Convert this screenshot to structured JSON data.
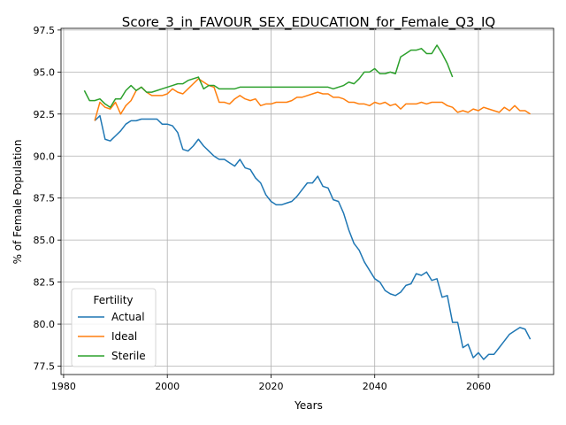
{
  "chart_data": {
    "type": "line",
    "title": "Score_3_in_FAVOUR_SEX_EDUCATION_for_Female_Q3_IQ",
    "xlabel": "Years",
    "ylabel": "% of Female Population",
    "xlim": [
      1979.5,
      2074.5
    ],
    "ylim": [
      77.0,
      97.6
    ],
    "xticks": [
      1980,
      2000,
      2020,
      2040,
      2060
    ],
    "yticks": [
      77.5,
      80.0,
      82.5,
      85.0,
      87.5,
      90.0,
      92.5,
      95.0,
      97.5
    ],
    "ytick_labels": [
      "77.5",
      "80.0",
      "82.5",
      "85.0",
      "87.5",
      "90.0",
      "92.5",
      "95.0",
      "97.5"
    ],
    "grid": true,
    "legend": {
      "title": "Fertility",
      "position": "bottom-left"
    },
    "series": [
      {
        "name": "Actual",
        "color": "#1f77b4",
        "x": [
          1986,
          1987,
          1988,
          1989,
          1990,
          1991,
          1992,
          1993,
          1994,
          1995,
          1996,
          1997,
          1998,
          1999,
          2000,
          2001,
          2002,
          2003,
          2004,
          2005,
          2006,
          2007,
          2008,
          2009,
          2010,
          2011,
          2012,
          2013,
          2014,
          2015,
          2016,
          2017,
          2018,
          2019,
          2020,
          2021,
          2022,
          2023,
          2024,
          2025,
          2026,
          2027,
          2028,
          2029,
          2030,
          2031,
          2032,
          2033,
          2034,
          2035,
          2036,
          2037,
          2038,
          2039,
          2040,
          2041,
          2042,
          2043,
          2044,
          2045,
          2046,
          2047,
          2048,
          2049,
          2050,
          2051,
          2052,
          2053,
          2054,
          2055,
          2056,
          2057,
          2058,
          2059,
          2060,
          2061,
          2062,
          2063,
          2064,
          2065,
          2066,
          2067,
          2068,
          2069,
          2070
        ],
        "y": [
          92.1,
          92.4,
          91.0,
          90.9,
          91.2,
          91.5,
          91.9,
          92.1,
          92.1,
          92.2,
          92.2,
          92.2,
          92.2,
          91.9,
          91.9,
          91.8,
          91.4,
          90.4,
          90.3,
          90.6,
          91.0,
          90.6,
          90.3,
          90.0,
          89.8,
          89.8,
          89.6,
          89.4,
          89.8,
          89.3,
          89.2,
          88.7,
          88.4,
          87.7,
          87.3,
          87.1,
          87.1,
          87.2,
          87.3,
          87.6,
          88.0,
          88.4,
          88.4,
          88.8,
          88.2,
          88.1,
          87.4,
          87.3,
          86.6,
          85.6,
          84.8,
          84.4,
          83.7,
          83.2,
          82.7,
          82.5,
          82.0,
          81.8,
          81.7,
          81.9,
          82.3,
          82.4,
          83.0,
          82.9,
          83.1,
          82.6,
          82.7,
          81.6,
          81.7,
          80.1,
          80.1,
          78.6,
          78.8,
          78.0,
          78.3,
          77.9,
          78.2,
          78.2,
          78.6,
          79.0,
          79.4,
          79.6,
          79.8,
          79.7,
          79.1
        ]
      },
      {
        "name": "Ideal",
        "color": "#ff7f0e",
        "x": [
          1986,
          1987,
          1988,
          1989,
          1990,
          1991,
          1992,
          1993,
          1994,
          1995,
          1996,
          1997,
          1998,
          1999,
          2000,
          2001,
          2002,
          2003,
          2004,
          2005,
          2006,
          2007,
          2008,
          2009,
          2010,
          2011,
          2012,
          2013,
          2014,
          2015,
          2016,
          2017,
          2018,
          2019,
          2020,
          2021,
          2022,
          2023,
          2024,
          2025,
          2026,
          2027,
          2028,
          2029,
          2030,
          2031,
          2032,
          2033,
          2034,
          2035,
          2036,
          2037,
          2038,
          2039,
          2040,
          2041,
          2042,
          2043,
          2044,
          2045,
          2046,
          2047,
          2048,
          2049,
          2050,
          2051,
          2052,
          2053,
          2054,
          2055,
          2056,
          2057,
          2058,
          2059,
          2060,
          2061,
          2062,
          2063,
          2064,
          2065,
          2066,
          2067,
          2068,
          2069,
          2070
        ],
        "y": [
          92.1,
          93.2,
          92.9,
          92.8,
          93.2,
          92.5,
          93.0,
          93.3,
          93.9,
          94.1,
          93.8,
          93.6,
          93.6,
          93.6,
          93.7,
          94.0,
          93.8,
          93.7,
          94.0,
          94.3,
          94.6,
          94.4,
          94.2,
          94.1,
          93.2,
          93.2,
          93.1,
          93.4,
          93.6,
          93.4,
          93.3,
          93.4,
          93.0,
          93.1,
          93.1,
          93.2,
          93.2,
          93.2,
          93.3,
          93.5,
          93.5,
          93.6,
          93.7,
          93.8,
          93.7,
          93.7,
          93.5,
          93.5,
          93.4,
          93.2,
          93.2,
          93.1,
          93.1,
          93.0,
          93.2,
          93.1,
          93.2,
          93.0,
          93.1,
          92.8,
          93.1,
          93.1,
          93.1,
          93.2,
          93.1,
          93.2,
          93.2,
          93.2,
          93.0,
          92.9,
          92.6,
          92.7,
          92.6,
          92.8,
          92.7,
          92.9,
          92.8,
          92.7,
          92.6,
          92.9,
          92.7,
          93.0,
          92.7,
          92.7,
          92.5
        ]
      },
      {
        "name": "Sterile",
        "color": "#2ca02c",
        "x": [
          1984,
          1985,
          1986,
          1987,
          1988,
          1989,
          1990,
          1991,
          1992,
          1993,
          1994,
          1995,
          1996,
          1997,
          1998,
          1999,
          2000,
          2001,
          2002,
          2003,
          2004,
          2005,
          2006,
          2007,
          2008,
          2009,
          2010,
          2011,
          2012,
          2013,
          2014,
          2015,
          2016,
          2017,
          2018,
          2019,
          2020,
          2021,
          2022,
          2023,
          2024,
          2025,
          2026,
          2027,
          2028,
          2029,
          2030,
          2031,
          2032,
          2033,
          2034,
          2035,
          2036,
          2037,
          2038,
          2039,
          2040,
          2041,
          2042,
          2043,
          2044,
          2045,
          2046,
          2047,
          2048,
          2049,
          2050,
          2051,
          2052,
          2053,
          2054,
          2055
        ],
        "y": [
          93.9,
          93.3,
          93.3,
          93.4,
          93.1,
          92.9,
          93.4,
          93.4,
          93.9,
          94.2,
          93.9,
          94.1,
          93.8,
          93.8,
          93.9,
          94.0,
          94.1,
          94.2,
          94.3,
          94.3,
          94.5,
          94.6,
          94.7,
          94.0,
          94.2,
          94.2,
          94.0,
          94.0,
          94.0,
          94.0,
          94.1,
          94.1,
          94.1,
          94.1,
          94.1,
          94.1,
          94.1,
          94.1,
          94.1,
          94.1,
          94.1,
          94.1,
          94.1,
          94.1,
          94.1,
          94.1,
          94.1,
          94.1,
          94.0,
          94.1,
          94.2,
          94.4,
          94.3,
          94.6,
          95.0,
          95.0,
          95.2,
          94.9,
          94.9,
          95.0,
          94.9,
          95.9,
          96.1,
          96.3,
          96.3,
          96.4,
          96.1,
          96.1,
          96.6,
          96.1,
          95.5,
          94.7
        ]
      }
    ]
  }
}
